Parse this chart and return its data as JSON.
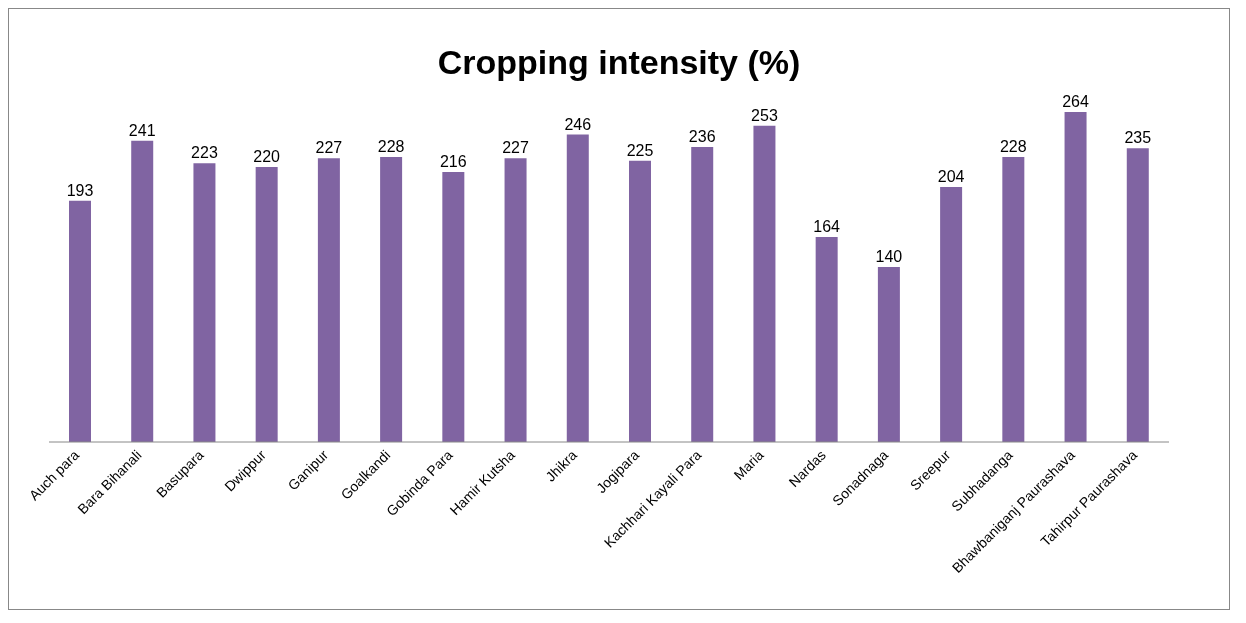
{
  "chart_data": {
    "type": "bar",
    "title": "Cropping intensity (%)",
    "categories": [
      "Auch para",
      "Bara Bihanali",
      "Basupara",
      "Dwippur",
      "Ganipur",
      "Goalkandi",
      "Gobinda Para",
      "Hamir Kutsha",
      "Jhikra",
      "Jogipara",
      "Kachhari Kayali Para",
      "Maria",
      "Nardas",
      "Sonadnaga",
      "Sreepur",
      "Subhadanga",
      "Bhawbaniganj Paurashava",
      "Tahirpur Paurashava"
    ],
    "values": [
      193,
      241,
      223,
      220,
      227,
      228,
      216,
      227,
      246,
      225,
      236,
      253,
      164,
      140,
      204,
      228,
      264,
      235
    ],
    "color": "#8064a2",
    "data_labels": true,
    "grid": false,
    "legend": false
  }
}
